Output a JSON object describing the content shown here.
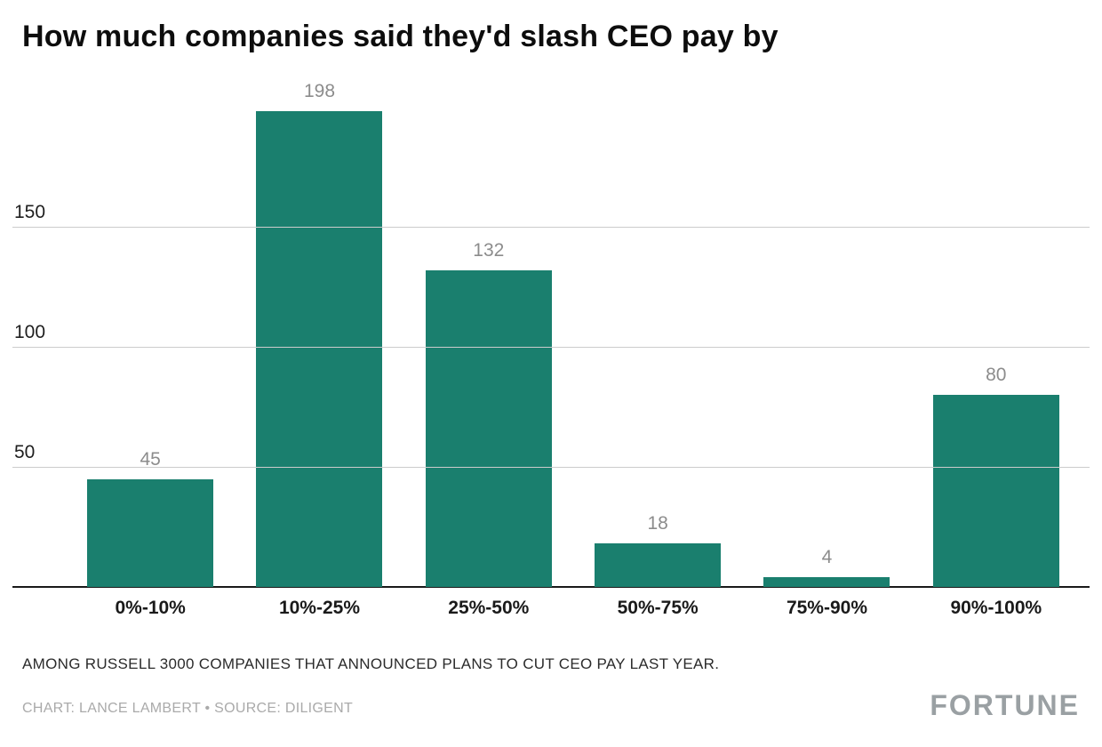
{
  "title": "How much companies said they'd slash CEO pay by",
  "chart_data": {
    "type": "bar",
    "title": "How much companies said they'd slash CEO pay by",
    "categories": [
      "0%-10%",
      "10%-25%",
      "25%-50%",
      "50%-75%",
      "75%-90%",
      "90%-100%"
    ],
    "values": [
      45,
      198,
      132,
      18,
      4,
      80
    ],
    "xlabel": "",
    "ylabel": "",
    "ylim": [
      0,
      200
    ],
    "yticks": [
      50,
      100,
      150
    ],
    "grid": true,
    "legend": false,
    "bar_color": "#1A7F6E",
    "gridline_color": "#cccccc",
    "value_label_color": "#8c8c8c"
  },
  "footer": {
    "note": "AMONG RUSSELL 3000 COMPANIES THAT ANNOUNCED PLANS TO CUT CEO PAY LAST YEAR.",
    "credit": "CHART: LANCE LAMBERT • SOURCE: DILIGENT",
    "brand": "FORTUNE"
  }
}
